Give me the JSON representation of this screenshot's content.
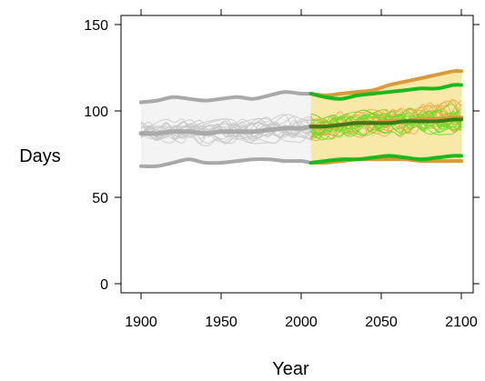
{
  "chart_data": {
    "type": "line",
    "title": "",
    "xlabel": "Year",
    "ylabel": "Days",
    "xlim": [
      1900,
      2100
    ],
    "ylim": [
      0,
      150
    ],
    "xticks": [
      1900,
      1950,
      2000,
      2050,
      2100
    ],
    "yticks": [
      0,
      50,
      100,
      150
    ],
    "x_tick_labels": [
      "1900",
      "1950",
      "2000",
      "2050",
      "2100"
    ],
    "y_tick_labels": [
      "0",
      "50",
      "100",
      "150"
    ],
    "grid": false,
    "legend": "none",
    "colors": {
      "historical_band_fill": "#f4f4f4",
      "historical_line": "#a9a9a9",
      "historical_member": "#c8c8c8",
      "scenario_a_band_fill": "#f8e9a8",
      "scenario_a_line": "#d99a3a",
      "scenario_a_member": "#eeaa44",
      "scenario_b_line": "#1cb81c",
      "scenario_b_member": "#66dd22",
      "overlap_mean": "#3c7a18"
    },
    "series": [
      {
        "role": "historical-upper",
        "x": [
          1900,
          1910,
          1920,
          1930,
          1940,
          1950,
          1960,
          1970,
          1980,
          1990,
          2000,
          2006
        ],
        "y": [
          105,
          106,
          108,
          107,
          106,
          107,
          108,
          107,
          109,
          111,
          110,
          110
        ]
      },
      {
        "role": "historical-mean",
        "x": [
          1900,
          1910,
          1920,
          1930,
          1940,
          1950,
          1960,
          1970,
          1980,
          1990,
          2000,
          2006
        ],
        "y": [
          87,
          87,
          88,
          88,
          87,
          88,
          88,
          88,
          89,
          90,
          90,
          91
        ]
      },
      {
        "role": "historical-lower",
        "x": [
          1900,
          1910,
          1920,
          1930,
          1940,
          1950,
          1960,
          1970,
          1980,
          1990,
          2000,
          2006
        ],
        "y": [
          68,
          68,
          70,
          72,
          70,
          70,
          71,
          72,
          72,
          71,
          71,
          70
        ]
      },
      {
        "role": "scenario-a-upper",
        "x": [
          2006,
          2015,
          2025,
          2035,
          2045,
          2055,
          2065,
          2075,
          2085,
          2095,
          2100
        ],
        "y": [
          110,
          109,
          110,
          111,
          112,
          115,
          117,
          119,
          121,
          123,
          123
        ]
      },
      {
        "role": "scenario-a-mean",
        "x": [
          2006,
          2015,
          2025,
          2035,
          2045,
          2055,
          2065,
          2075,
          2085,
          2095,
          2100
        ],
        "y": [
          91,
          91,
          92,
          93,
          93,
          94,
          94,
          95,
          95,
          96,
          96
        ]
      },
      {
        "role": "scenario-a-lower",
        "x": [
          2006,
          2015,
          2025,
          2035,
          2045,
          2055,
          2065,
          2075,
          2085,
          2095,
          2100
        ],
        "y": [
          70,
          70,
          71,
          72,
          72,
          72,
          72,
          71,
          71,
          71,
          71
        ]
      },
      {
        "role": "scenario-b-upper",
        "x": [
          2006,
          2015,
          2025,
          2035,
          2045,
          2055,
          2065,
          2075,
          2085,
          2095,
          2100
        ],
        "y": [
          110,
          108,
          107,
          109,
          110,
          111,
          112,
          113,
          113,
          115,
          115
        ]
      },
      {
        "role": "scenario-b-mean",
        "x": [
          2006,
          2015,
          2025,
          2035,
          2045,
          2055,
          2065,
          2075,
          2085,
          2095,
          2100
        ],
        "y": [
          91,
          91,
          92,
          93,
          93,
          93,
          94,
          94,
          94,
          95,
          95
        ]
      },
      {
        "role": "scenario-b-lower",
        "x": [
          2006,
          2015,
          2025,
          2035,
          2045,
          2055,
          2065,
          2075,
          2085,
          2095,
          2100
        ],
        "y": [
          70,
          71,
          72,
          72,
          73,
          74,
          73,
          72,
          73,
          74,
          74
        ]
      }
    ]
  }
}
